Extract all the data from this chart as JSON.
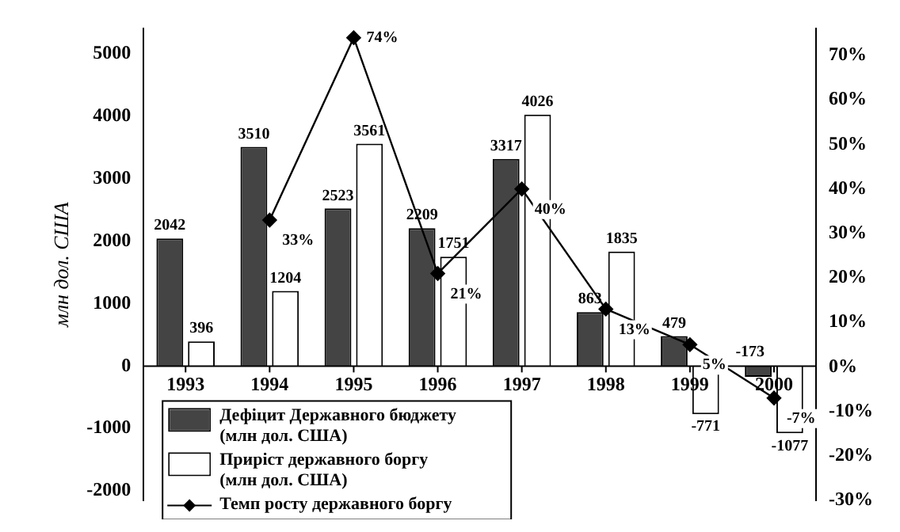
{
  "chart_data": {
    "type": "bar",
    "ylabel": "млн дол. США",
    "categories": [
      "1993",
      "1994",
      "1995",
      "1996",
      "1997",
      "1998",
      "1999",
      "2000"
    ],
    "series": [
      {
        "name": "Дефіцит Державного бюджету (млн дол. США)",
        "color": "#444444",
        "values": [
          2042,
          3510,
          2523,
          2209,
          3317,
          863,
          479,
          -173
        ]
      },
      {
        "name": "Приріст державного боргу (млн дол. США)",
        "color": "#ffffff",
        "values": [
          396,
          1204,
          3561,
          1751,
          4026,
          1835,
          -771,
          -1077
        ]
      },
      {
        "name": "Темп росту державного боргу",
        "type": "line",
        "axis": "y2",
        "color": "#000000",
        "marker": "diamond",
        "values": [
          null,
          33,
          74,
          21,
          40,
          13,
          5,
          -7
        ],
        "value_labels": [
          null,
          "33%",
          "74%",
          "21%",
          "40%",
          "13%",
          "5%",
          "-7%"
        ]
      }
    ],
    "ylim": [
      -2150,
      5400
    ],
    "yticks": [
      -2000,
      -1000,
      0,
      1000,
      2000,
      3000,
      4000,
      5000
    ],
    "y2lim": [
      -30,
      76
    ],
    "y2ticks": [
      {
        "value": -30,
        "label": "-30%"
      },
      {
        "value": -20,
        "label": "-20%"
      },
      {
        "value": -10,
        "label": "-10%"
      },
      {
        "value": 0,
        "label": "0%"
      },
      {
        "value": 10,
        "label": "10%"
      },
      {
        "value": 20,
        "label": "20%"
      },
      {
        "value": 30,
        "label": "30%"
      },
      {
        "value": 40,
        "label": "40%"
      },
      {
        "value": 50,
        "label": "50%"
      },
      {
        "value": 60,
        "label": "60%"
      },
      {
        "value": 70,
        "label": "70%"
      }
    ],
    "data_labels": true,
    "grid": false,
    "legend": "bottom left"
  }
}
